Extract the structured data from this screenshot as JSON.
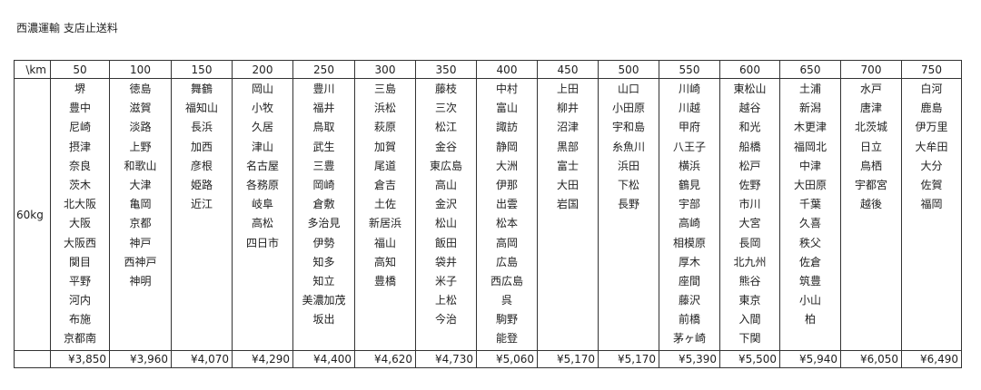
{
  "title": "西濃運輸 支店止送料",
  "corner_label": "\\km",
  "weight_label": "60kg",
  "columns": [
    {
      "km": "50",
      "places": [
        "堺",
        "豊中",
        "尼崎",
        "摂津",
        "奈良",
        "茨木",
        "北大阪",
        "大阪",
        "大阪西",
        "関目",
        "平野",
        "河内",
        "布施",
        "京都南"
      ],
      "price": "¥3,850"
    },
    {
      "km": "100",
      "places": [
        "徳島",
        "滋賀",
        "淡路",
        "上野",
        "和歌山",
        "大津",
        "亀岡",
        "京都",
        "神戸",
        "西神戸",
        "神明"
      ],
      "price": "¥3,960"
    },
    {
      "km": "150",
      "places": [
        "舞鶴",
        "福知山",
        "長浜",
        "加西",
        "彦根",
        "姫路",
        "近江"
      ],
      "price": "¥4,070"
    },
    {
      "km": "200",
      "places": [
        "岡山",
        "小牧",
        "久居",
        "津山",
        "名古屋",
        "各務原",
        "岐阜",
        "高松",
        "四日市"
      ],
      "price": "¥4,290"
    },
    {
      "km": "250",
      "places": [
        "豊川",
        "福井",
        "鳥取",
        "武生",
        "三豊",
        "岡崎",
        "倉敷",
        "多治見",
        "伊勢",
        "知多",
        "知立",
        "美濃加茂",
        "坂出"
      ],
      "price": "¥4,400"
    },
    {
      "km": "300",
      "places": [
        "三島",
        "浜松",
        "萩原",
        "加賀",
        "尾道",
        "倉吉",
        "土佐",
        "新居浜",
        "福山",
        "高知",
        "豊橋"
      ],
      "price": "¥4,620"
    },
    {
      "km": "350",
      "places": [
        "藤枝",
        "三次",
        "松江",
        "金谷",
        "東広島",
        "高山",
        "金沢",
        "松山",
        "飯田",
        "袋井",
        "米子",
        "上松",
        "今治"
      ],
      "price": "¥4,730"
    },
    {
      "km": "400",
      "places": [
        "中村",
        "富山",
        "諏訪",
        "静岡",
        "大洲",
        "伊那",
        "出雲",
        "松本",
        "高岡",
        "広島",
        "西広島",
        "呉",
        "駒野",
        "能登"
      ],
      "price": "¥5,060"
    },
    {
      "km": "450",
      "places": [
        "上田",
        "柳井",
        "沼津",
        "黒部",
        "富士",
        "大田",
        "岩国"
      ],
      "price": "¥5,170"
    },
    {
      "km": "500",
      "places": [
        "山口",
        "小田原",
        "宇和島",
        "糸魚川",
        "浜田",
        "下松",
        "長野"
      ],
      "price": "¥5,170"
    },
    {
      "km": "550",
      "places": [
        "川崎",
        "川越",
        "甲府",
        "八王子",
        "横浜",
        "鶴見",
        "宇部",
        "高崎",
        "相模原",
        "厚木",
        "座間",
        "藤沢",
        "前橋",
        "茅ヶ崎"
      ],
      "price": "¥5,390"
    },
    {
      "km": "600",
      "places": [
        "東松山",
        "越谷",
        "和光",
        "船橋",
        "松戸",
        "佐野",
        "市川",
        "大宮",
        "長岡",
        "北九州",
        "熊谷",
        "東京",
        "入間",
        "下関"
      ],
      "price": "¥5,500"
    },
    {
      "km": "650",
      "places": [
        "土浦",
        "新潟",
        "木更津",
        "福岡北",
        "中津",
        "大田原",
        "千葉",
        "久喜",
        "秩父",
        "佐倉",
        "筑豊",
        "小山",
        "柏"
      ],
      "price": "¥5,940"
    },
    {
      "km": "700",
      "places": [
        "水戸",
        "唐津",
        "北茨城",
        "日立",
        "鳥栖",
        "宇都宮",
        "越後"
      ],
      "price": "¥6,050"
    },
    {
      "km": "750",
      "places": [
        "白河",
        "鹿島",
        "伊万里",
        "大牟田",
        "大分",
        "佐賀",
        "福岡"
      ],
      "price": "¥6,490"
    }
  ]
}
